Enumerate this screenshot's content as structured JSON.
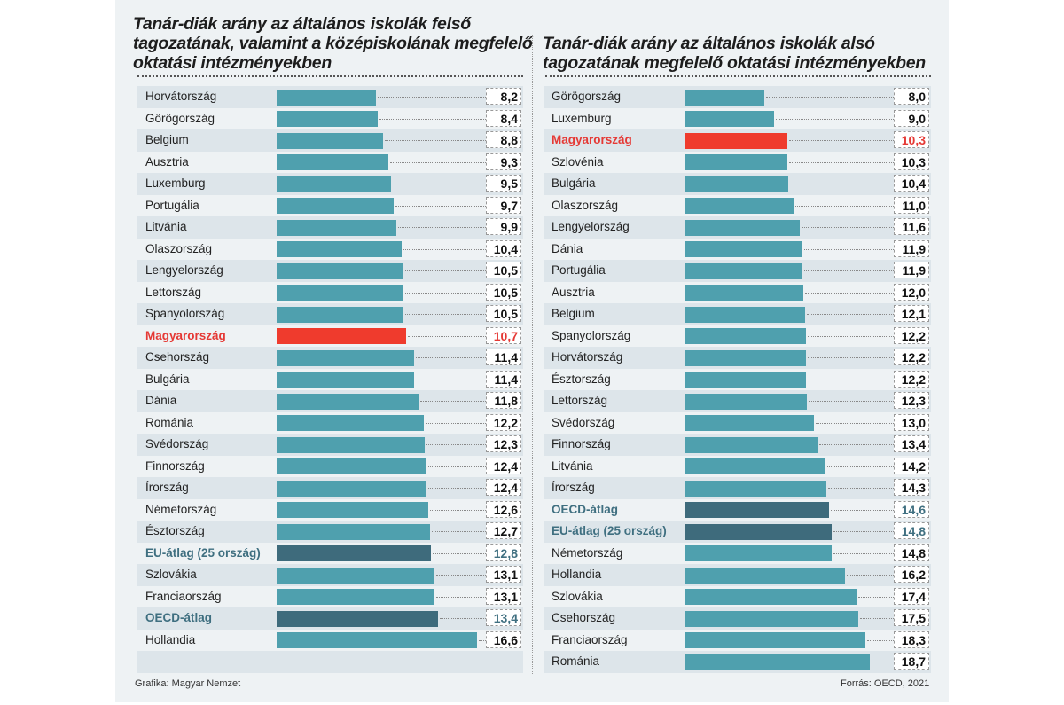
{
  "colors": {
    "bar": "#4fa0ae",
    "average": "#3e6b7c",
    "hungary": "#ef3b2d"
  },
  "chart_data": [
    {
      "type": "bar",
      "orientation": "horizontal",
      "title": "Tanár-diák arány az általános iskolák felső tagozatának, valamint a középiskolának megfelelő oktatási intézményekben",
      "categories": [
        "Horvátország",
        "Görögország",
        "Belgium",
        "Ausztria",
        "Luxemburg",
        "Portugália",
        "Litvánia",
        "Olaszország",
        "Lengyelország",
        "Lettország",
        "Spanyolország",
        "Magyarország",
        "Csehország",
        "Bulgária",
        "Dánia",
        "Románia",
        "Svédország",
        "Finnország",
        "Írország",
        "Németország",
        "Észtország",
        "EU-átlag (25 ország)",
        "Szlovákia",
        "Franciaország",
        "OECD-átlag",
        "Hollandia"
      ],
      "values": [
        8.2,
        8.4,
        8.8,
        9.3,
        9.5,
        9.7,
        9.9,
        10.4,
        10.5,
        10.5,
        10.5,
        10.7,
        11.4,
        11.4,
        11.8,
        12.2,
        12.3,
        12.4,
        12.4,
        12.6,
        12.7,
        12.8,
        13.1,
        13.1,
        13.4,
        16.6
      ],
      "labels": [
        "8,2",
        "8,4",
        "8,8",
        "9,3",
        "9,5",
        "9,7",
        "9,9",
        "10,4",
        "10,5",
        "10,5",
        "10,5",
        "10,7",
        "11,4",
        "11,4",
        "11,8",
        "12,2",
        "12,3",
        "12,4",
        "12,4",
        "12,6",
        "12,7",
        "12,8",
        "13,1",
        "13,1",
        "13,4",
        "16,6"
      ],
      "highlight": {
        "Magyarország": "hungary",
        "EU-átlag (25 ország)": "average",
        "OECD-átlag": "average"
      },
      "xlim": [
        0,
        17
      ]
    },
    {
      "type": "bar",
      "orientation": "horizontal",
      "title": "Tanár-diák arány az általános iskolák alsó tagozatának megfelelő oktatási intézményekben",
      "categories": [
        "Görögország",
        "Luxemburg",
        "Magyarország",
        "Szlovénia",
        "Bulgária",
        "Olaszország",
        "Lengyelország",
        "Dánia",
        "Portugália",
        "Ausztria",
        "Belgium",
        "Spanyolország",
        "Horvátország",
        "Észtország",
        "Lettország",
        "Svédország",
        "Finnország",
        "Litvánia",
        "Írország",
        "OECD-átlag",
        "EU-átlag (25 ország)",
        "Németország",
        "Hollandia",
        "Szlovákia",
        "Csehország",
        "Franciaország",
        "Románia"
      ],
      "values": [
        8.0,
        9.0,
        10.3,
        10.3,
        10.4,
        11.0,
        11.6,
        11.9,
        11.9,
        12.0,
        12.1,
        12.2,
        12.2,
        12.2,
        12.3,
        13.0,
        13.4,
        14.2,
        14.3,
        14.6,
        14.8,
        14.8,
        16.2,
        17.4,
        17.5,
        18.3,
        18.7
      ],
      "labels": [
        "8,0",
        "9,0",
        "10,3",
        "10,3",
        "10,4",
        "11,0",
        "11,6",
        "11,9",
        "11,9",
        "12,0",
        "12,1",
        "12,2",
        "12,2",
        "12,2",
        "12,3",
        "13,0",
        "13,4",
        "14,2",
        "14,3",
        "14,6",
        "14,8",
        "14,8",
        "16,2",
        "17,4",
        "17,5",
        "18,3",
        "18,7"
      ],
      "highlight": {
        "Magyarország": "hungary",
        "EU-átlag (25 ország)": "average",
        "OECD-átlag": "average"
      },
      "xlim": [
        0,
        19
      ]
    }
  ],
  "footer": {
    "credit": "Grafika: Magyar Nemzet",
    "source": "Forrás: OECD, 2021"
  }
}
